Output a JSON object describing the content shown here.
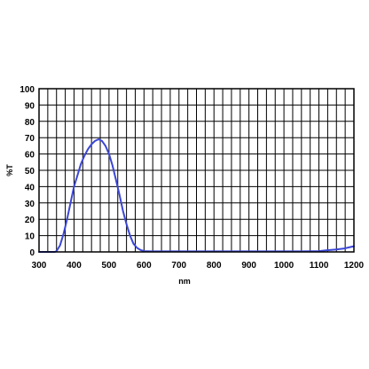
{
  "chart_data": {
    "type": "line",
    "title": "",
    "xlabel": "nm",
    "ylabel": "%T",
    "xlim": [
      300,
      1200
    ],
    "ylim": [
      0,
      100
    ],
    "x_ticks": [
      300,
      400,
      500,
      600,
      700,
      800,
      900,
      1000,
      1100,
      1200
    ],
    "y_ticks": [
      0,
      10,
      20,
      30,
      40,
      50,
      60,
      70,
      80,
      90,
      100
    ],
    "x_tick_labels": [
      "300",
      "400",
      "500",
      "600",
      "700",
      "800",
      "900",
      "1000",
      "1100",
      "1200"
    ],
    "y_tick_labels": [
      "0",
      "10",
      "20",
      "30",
      "40",
      "50",
      "60",
      "70",
      "80",
      "90",
      "100"
    ],
    "grid": true,
    "line_color": "#3b46d6",
    "series": [
      {
        "x": [
          300,
          330,
          345,
          350,
          360,
          370,
          380,
          390,
          400,
          410,
          420,
          430,
          440,
          450,
          460,
          470,
          480,
          490,
          500,
          510,
          520,
          530,
          540,
          550,
          560,
          570,
          580,
          590,
          600,
          620,
          650,
          700,
          800,
          900,
          1000,
          1050,
          1100,
          1120,
          1150,
          1170,
          1190,
          1200
        ],
        "y": [
          0,
          0,
          0,
          0.5,
          4,
          11,
          20,
          30,
          40,
          47,
          54,
          59,
          63,
          66,
          68,
          69,
          68,
          65,
          60,
          53,
          44,
          35,
          25,
          17,
          10,
          5,
          2.5,
          1.2,
          0.5,
          0.3,
          0.3,
          0.3,
          0.3,
          0.3,
          0.3,
          0.3,
          0.5,
          1,
          1.5,
          2,
          3,
          3.5
        ]
      }
    ]
  }
}
